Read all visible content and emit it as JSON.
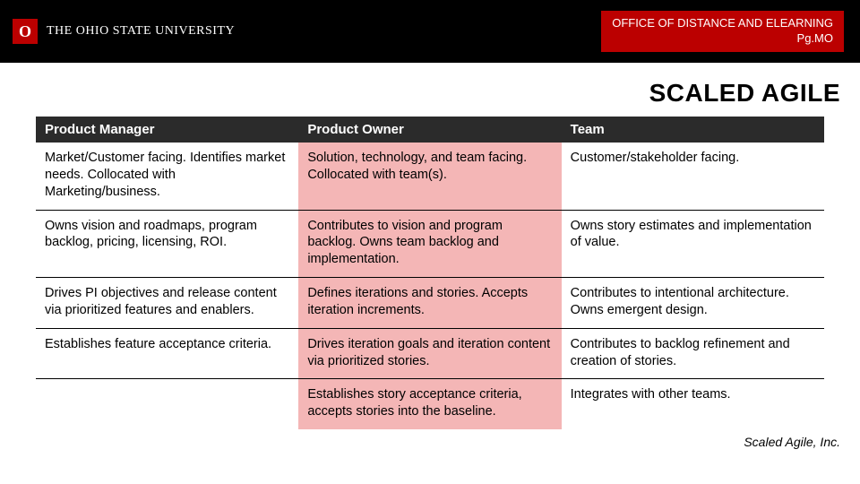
{
  "header": {
    "logo_letter": "O",
    "university": "THE OHIO STATE UNIVERSITY",
    "office_line1": "OFFICE OF DISTANCE AND ELEARNING",
    "office_line2": "Pg.MO"
  },
  "title": "SCALED AGILE",
  "table": {
    "columns": [
      "Product Manager",
      "Product Owner",
      "Team"
    ],
    "column_colors": {
      "header_bg": "#2b2b2b",
      "header_text": "#ffffff",
      "mid_bg": "#f4b6b6"
    },
    "rows": [
      [
        "Market/Customer facing. Identifies market needs. Collocated with Marketing/business.",
        "Solution, technology, and team facing. Collocated with team(s).",
        "Customer/stakeholder facing."
      ],
      [
        "Owns vision and roadmaps, program backlog, pricing, licensing, ROI.",
        "Contributes to vision and program backlog. Owns team backlog and implementation.",
        "Owns story estimates and implementation of value."
      ],
      [
        "Drives PI objectives and release content via prioritized features and enablers.",
        "Defines iterations and stories. Accepts iteration increments.",
        "Contributes to intentional architecture. Owns emergent design."
      ],
      [
        "Establishes feature acceptance criteria.",
        "Drives iteration goals and iteration content via prioritized stories.",
        "Contributes to backlog refinement and creation of stories."
      ],
      [
        "",
        "Establishes story acceptance criteria, accepts stories into the baseline.",
        "Integrates with other teams."
      ]
    ]
  },
  "attribution": "Scaled Agile, Inc.",
  "styling": {
    "page_bg": "#ffffff",
    "header_bg": "#000000",
    "accent": "#bb0000",
    "title_fontsize": 28,
    "body_fontsize": 14.5,
    "row_border": "#000000"
  }
}
